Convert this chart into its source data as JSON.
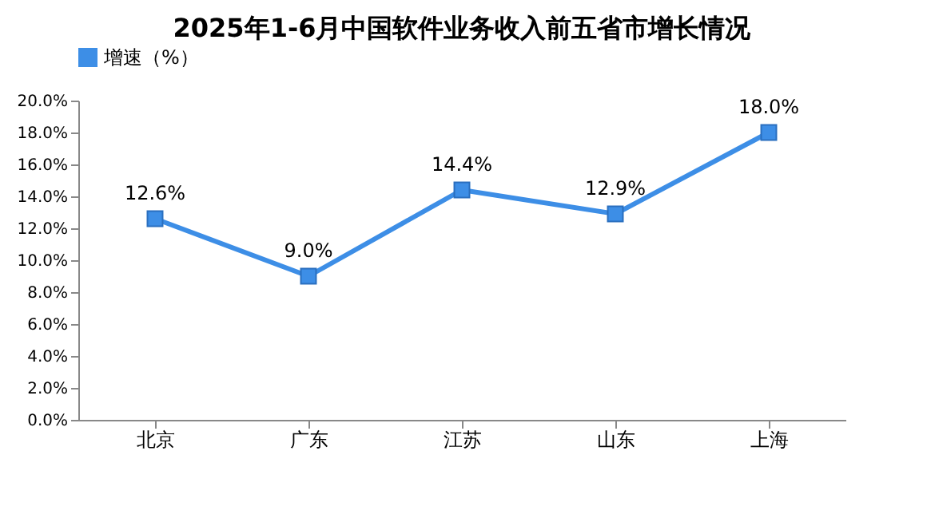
{
  "chart_data": {
    "type": "line",
    "title": "2025年1-6月中国软件业务收入前五省市增长情况",
    "categories": [
      "北京",
      "广东",
      "江苏",
      "山东",
      "上海"
    ],
    "series": [
      {
        "name": "增速（%）",
        "color": "#3d8ee6",
        "values": [
          12.6,
          9.0,
          14.4,
          12.9,
          18.0
        ],
        "value_labels": [
          "12.6%",
          "9.0%",
          "14.4%",
          "12.9%",
          "18.0%"
        ]
      }
    ],
    "ylim": [
      0,
      20
    ],
    "yticks": [
      {
        "value": 0,
        "label": "0.0%"
      },
      {
        "value": 2,
        "label": "2.0%"
      },
      {
        "value": 4,
        "label": "4.0%"
      },
      {
        "value": 6,
        "label": "6.0%"
      },
      {
        "value": 8,
        "label": "8.0%"
      },
      {
        "value": 10,
        "label": "10.0%"
      },
      {
        "value": 12,
        "label": "12.0%"
      },
      {
        "value": 14,
        "label": "14.0%"
      },
      {
        "value": 16,
        "label": "16.0%"
      },
      {
        "value": 18,
        "label": "18.0%"
      },
      {
        "value": 20,
        "label": "20.0%"
      }
    ],
    "marker": "square",
    "line_style": "solid",
    "grid": false,
    "legend": "top"
  }
}
